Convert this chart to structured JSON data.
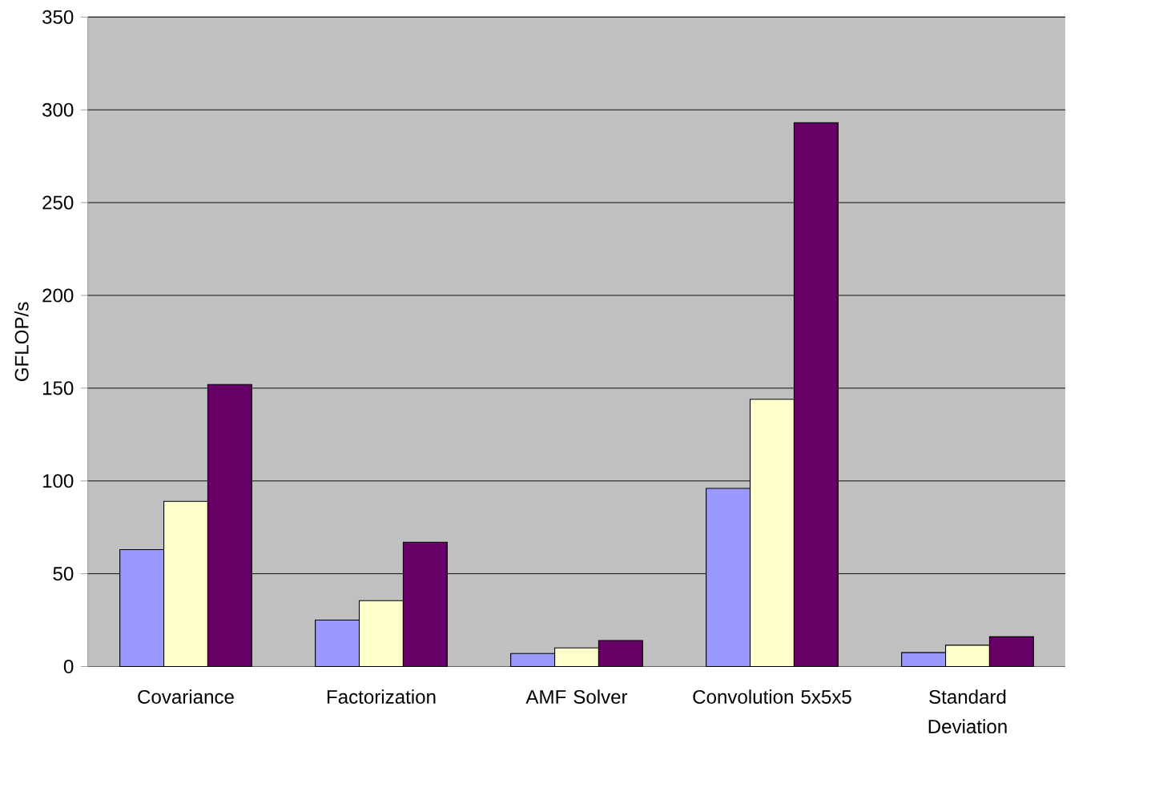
{
  "chart_data": {
    "type": "bar",
    "ylabel": "GFLOP/s",
    "categories": [
      "Covariance",
      "Factorization",
      "AMF Solver",
      "Convolution 5x5x5",
      "Standard Deviation"
    ],
    "series": [
      {
        "color": "#9999ff",
        "values": [
          63,
          25,
          7,
          96,
          7.5
        ]
      },
      {
        "color": "#ffffcc",
        "values": [
          89,
          35.5,
          10,
          144,
          11.5
        ]
      },
      {
        "color": "#660066",
        "values": [
          152,
          67,
          14,
          293,
          16
        ]
      }
    ],
    "ylim": [
      0,
      350
    ],
    "yticks": [
      0,
      50,
      100,
      150,
      200,
      250,
      300,
      350
    ],
    "grid": "y"
  }
}
